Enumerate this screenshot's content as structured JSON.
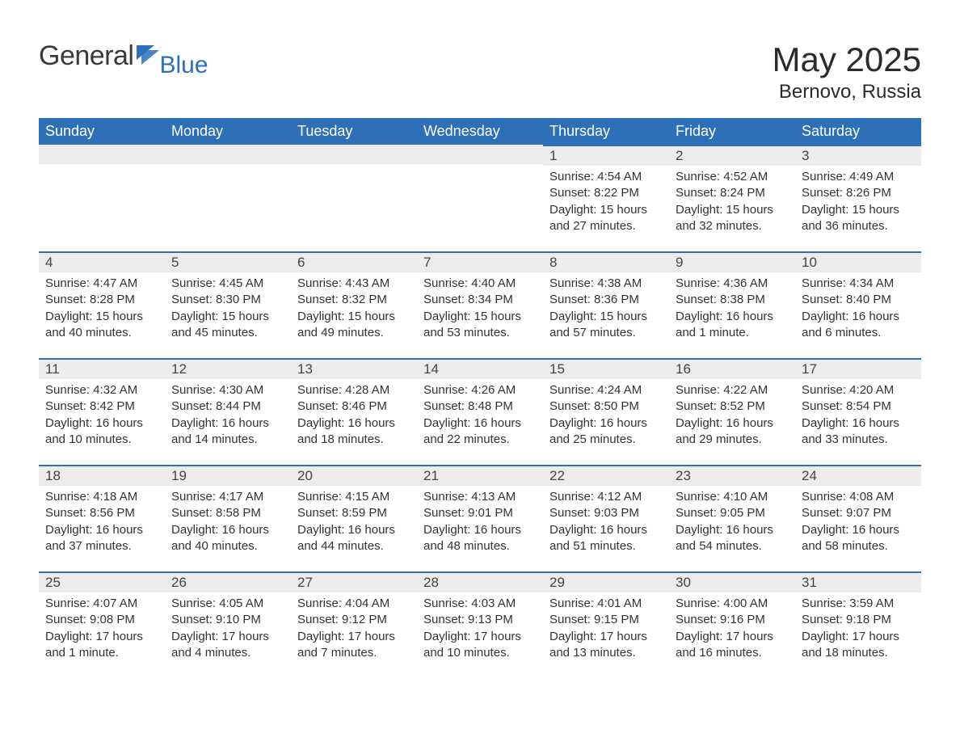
{
  "brand": {
    "part1": "General",
    "part2": "Blue"
  },
  "title": "May 2025",
  "location": "Bernovo, Russia",
  "colors": {
    "header_bg": "#2d70b8",
    "header_text": "#ffffff",
    "daynum_bg": "#ececec",
    "daynum_border": "#2d70b8",
    "body_text": "#333333",
    "page_bg": "#ffffff"
  },
  "day_labels": [
    "Sunday",
    "Monday",
    "Tuesday",
    "Wednesday",
    "Thursday",
    "Friday",
    "Saturday"
  ],
  "weeks": [
    [
      null,
      null,
      null,
      null,
      {
        "n": "1",
        "sunrise": "Sunrise: 4:54 AM",
        "sunset": "Sunset: 8:22 PM",
        "daylight": "Daylight: 15 hours and 27 minutes."
      },
      {
        "n": "2",
        "sunrise": "Sunrise: 4:52 AM",
        "sunset": "Sunset: 8:24 PM",
        "daylight": "Daylight: 15 hours and 32 minutes."
      },
      {
        "n": "3",
        "sunrise": "Sunrise: 4:49 AM",
        "sunset": "Sunset: 8:26 PM",
        "daylight": "Daylight: 15 hours and 36 minutes."
      }
    ],
    [
      {
        "n": "4",
        "sunrise": "Sunrise: 4:47 AM",
        "sunset": "Sunset: 8:28 PM",
        "daylight": "Daylight: 15 hours and 40 minutes."
      },
      {
        "n": "5",
        "sunrise": "Sunrise: 4:45 AM",
        "sunset": "Sunset: 8:30 PM",
        "daylight": "Daylight: 15 hours and 45 minutes."
      },
      {
        "n": "6",
        "sunrise": "Sunrise: 4:43 AM",
        "sunset": "Sunset: 8:32 PM",
        "daylight": "Daylight: 15 hours and 49 minutes."
      },
      {
        "n": "7",
        "sunrise": "Sunrise: 4:40 AM",
        "sunset": "Sunset: 8:34 PM",
        "daylight": "Daylight: 15 hours and 53 minutes."
      },
      {
        "n": "8",
        "sunrise": "Sunrise: 4:38 AM",
        "sunset": "Sunset: 8:36 PM",
        "daylight": "Daylight: 15 hours and 57 minutes."
      },
      {
        "n": "9",
        "sunrise": "Sunrise: 4:36 AM",
        "sunset": "Sunset: 8:38 PM",
        "daylight": "Daylight: 16 hours and 1 minute."
      },
      {
        "n": "10",
        "sunrise": "Sunrise: 4:34 AM",
        "sunset": "Sunset: 8:40 PM",
        "daylight": "Daylight: 16 hours and 6 minutes."
      }
    ],
    [
      {
        "n": "11",
        "sunrise": "Sunrise: 4:32 AM",
        "sunset": "Sunset: 8:42 PM",
        "daylight": "Daylight: 16 hours and 10 minutes."
      },
      {
        "n": "12",
        "sunrise": "Sunrise: 4:30 AM",
        "sunset": "Sunset: 8:44 PM",
        "daylight": "Daylight: 16 hours and 14 minutes."
      },
      {
        "n": "13",
        "sunrise": "Sunrise: 4:28 AM",
        "sunset": "Sunset: 8:46 PM",
        "daylight": "Daylight: 16 hours and 18 minutes."
      },
      {
        "n": "14",
        "sunrise": "Sunrise: 4:26 AM",
        "sunset": "Sunset: 8:48 PM",
        "daylight": "Daylight: 16 hours and 22 minutes."
      },
      {
        "n": "15",
        "sunrise": "Sunrise: 4:24 AM",
        "sunset": "Sunset: 8:50 PM",
        "daylight": "Daylight: 16 hours and 25 minutes."
      },
      {
        "n": "16",
        "sunrise": "Sunrise: 4:22 AM",
        "sunset": "Sunset: 8:52 PM",
        "daylight": "Daylight: 16 hours and 29 minutes."
      },
      {
        "n": "17",
        "sunrise": "Sunrise: 4:20 AM",
        "sunset": "Sunset: 8:54 PM",
        "daylight": "Daylight: 16 hours and 33 minutes."
      }
    ],
    [
      {
        "n": "18",
        "sunrise": "Sunrise: 4:18 AM",
        "sunset": "Sunset: 8:56 PM",
        "daylight": "Daylight: 16 hours and 37 minutes."
      },
      {
        "n": "19",
        "sunrise": "Sunrise: 4:17 AM",
        "sunset": "Sunset: 8:58 PM",
        "daylight": "Daylight: 16 hours and 40 minutes."
      },
      {
        "n": "20",
        "sunrise": "Sunrise: 4:15 AM",
        "sunset": "Sunset: 8:59 PM",
        "daylight": "Daylight: 16 hours and 44 minutes."
      },
      {
        "n": "21",
        "sunrise": "Sunrise: 4:13 AM",
        "sunset": "Sunset: 9:01 PM",
        "daylight": "Daylight: 16 hours and 48 minutes."
      },
      {
        "n": "22",
        "sunrise": "Sunrise: 4:12 AM",
        "sunset": "Sunset: 9:03 PM",
        "daylight": "Daylight: 16 hours and 51 minutes."
      },
      {
        "n": "23",
        "sunrise": "Sunrise: 4:10 AM",
        "sunset": "Sunset: 9:05 PM",
        "daylight": "Daylight: 16 hours and 54 minutes."
      },
      {
        "n": "24",
        "sunrise": "Sunrise: 4:08 AM",
        "sunset": "Sunset: 9:07 PM",
        "daylight": "Daylight: 16 hours and 58 minutes."
      }
    ],
    [
      {
        "n": "25",
        "sunrise": "Sunrise: 4:07 AM",
        "sunset": "Sunset: 9:08 PM",
        "daylight": "Daylight: 17 hours and 1 minute."
      },
      {
        "n": "26",
        "sunrise": "Sunrise: 4:05 AM",
        "sunset": "Sunset: 9:10 PM",
        "daylight": "Daylight: 17 hours and 4 minutes."
      },
      {
        "n": "27",
        "sunrise": "Sunrise: 4:04 AM",
        "sunset": "Sunset: 9:12 PM",
        "daylight": "Daylight: 17 hours and 7 minutes."
      },
      {
        "n": "28",
        "sunrise": "Sunrise: 4:03 AM",
        "sunset": "Sunset: 9:13 PM",
        "daylight": "Daylight: 17 hours and 10 minutes."
      },
      {
        "n": "29",
        "sunrise": "Sunrise: 4:01 AM",
        "sunset": "Sunset: 9:15 PM",
        "daylight": "Daylight: 17 hours and 13 minutes."
      },
      {
        "n": "30",
        "sunrise": "Sunrise: 4:00 AM",
        "sunset": "Sunset: 9:16 PM",
        "daylight": "Daylight: 17 hours and 16 minutes."
      },
      {
        "n": "31",
        "sunrise": "Sunrise: 3:59 AM",
        "sunset": "Sunset: 9:18 PM",
        "daylight": "Daylight: 17 hours and 18 minutes."
      }
    ]
  ]
}
